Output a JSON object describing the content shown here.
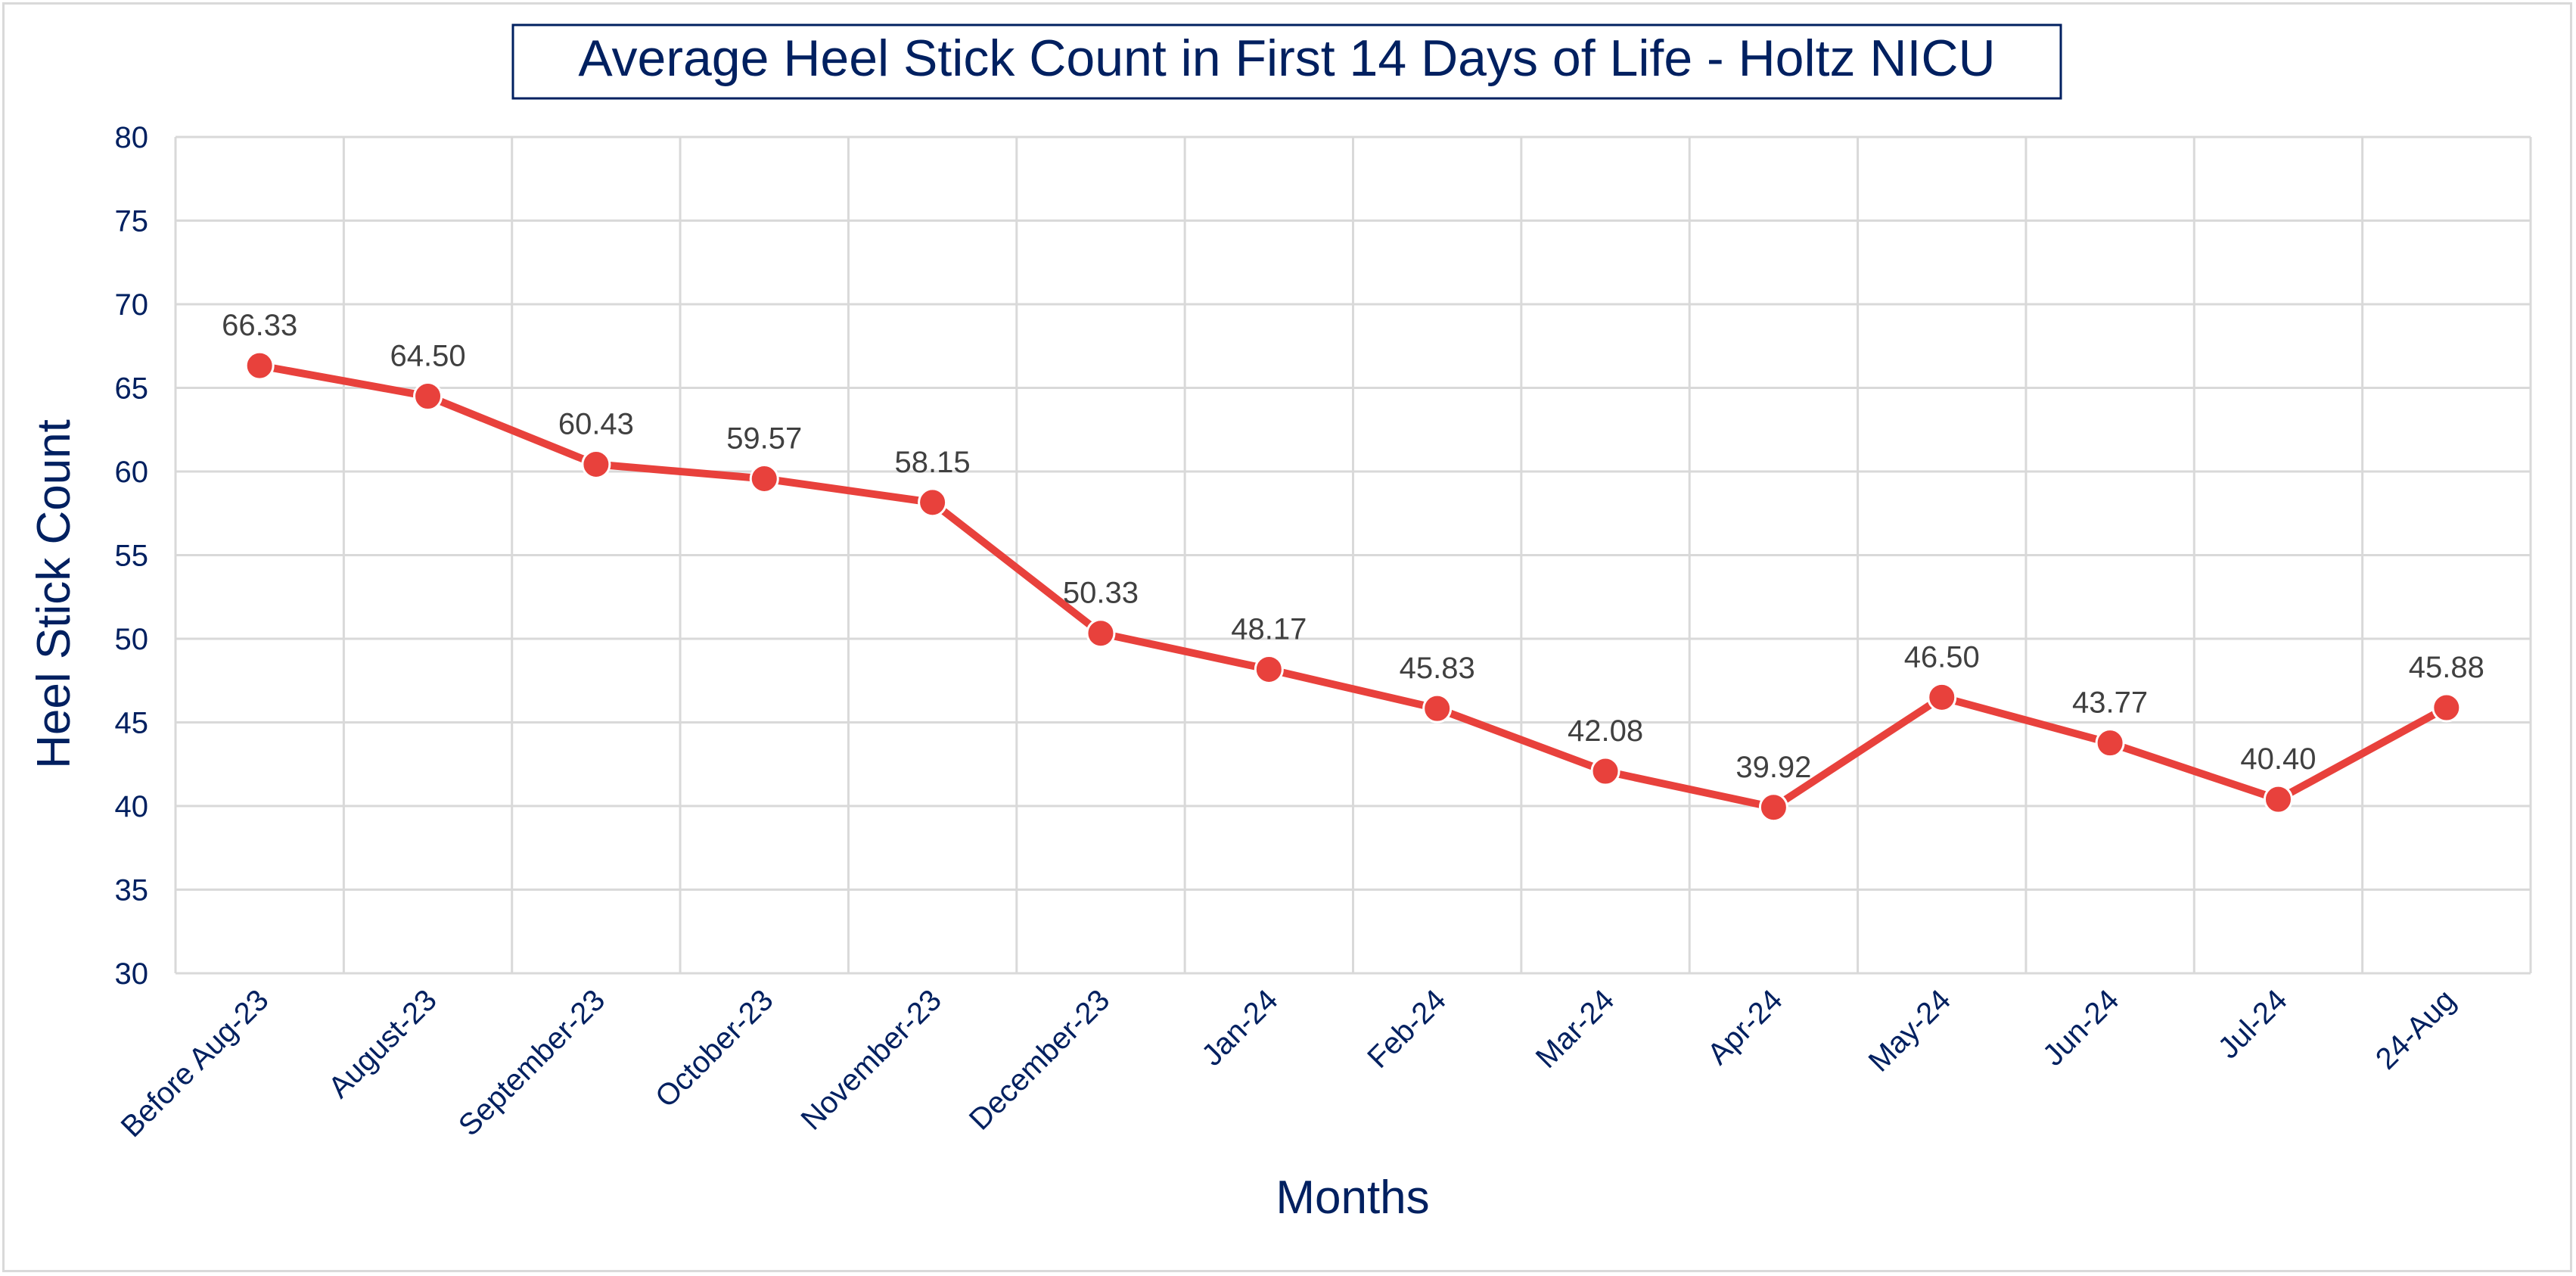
{
  "chart_data": {
    "type": "line",
    "title": "Average Heel Stick Count in First 14 Days of Life - Holtz NICU",
    "xlabel": "Months",
    "ylabel": "Heel Stick Count",
    "categories": [
      "Before Aug-23",
      "August-23",
      "September-23",
      "October-23",
      "November-23",
      "December-23",
      "Jan-24",
      "Feb-24",
      "Mar-24",
      "Apr-24",
      "May-24",
      "Jun-24",
      "Jul-24",
      "24-Aug"
    ],
    "series": [
      {
        "values": [
          66.33,
          64.5,
          60.43,
          59.57,
          58.15,
          50.33,
          48.17,
          45.83,
          42.08,
          39.92,
          46.5,
          43.77,
          40.4,
          45.88
        ],
        "labels": [
          "66.33",
          "64.50",
          "60.43",
          "59.57",
          "58.15",
          "50.33",
          "48.17",
          "45.83",
          "42.08",
          "39.92",
          "46.50",
          "43.77",
          "40.40",
          "45.88"
        ],
        "color": "#e8413c"
      }
    ],
    "ylim": [
      30,
      80
    ],
    "yticks": [
      30,
      35,
      40,
      45,
      50,
      55,
      60,
      65,
      70,
      75,
      80
    ],
    "grid": true,
    "legend": "none",
    "colors": {
      "text": "#002060",
      "label": "#404040",
      "grid": "#d9d9d9",
      "line": "#e8413c"
    }
  }
}
